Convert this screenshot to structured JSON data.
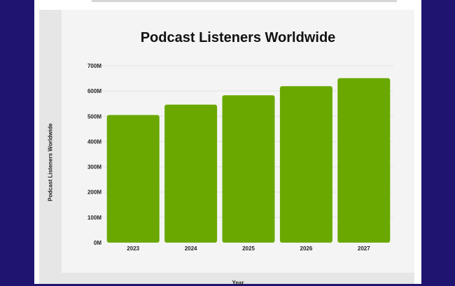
{
  "chart_data": {
    "type": "bar",
    "title": "Podcast Listeners Worldwide",
    "xlabel": "Year",
    "ylabel": "Podcast Listeners Worldwide",
    "categories": [
      "2023",
      "2024",
      "2025",
      "2026",
      "2027"
    ],
    "values": [
      505,
      546,
      583,
      619,
      651
    ],
    "unit": "M",
    "ylim": [
      0,
      700
    ],
    "yticks": [
      "0M",
      "100M",
      "200M",
      "300M",
      "400M",
      "500M",
      "600M",
      "700M"
    ],
    "grid": true,
    "legend": "none",
    "bar_color": "#6aa800"
  }
}
